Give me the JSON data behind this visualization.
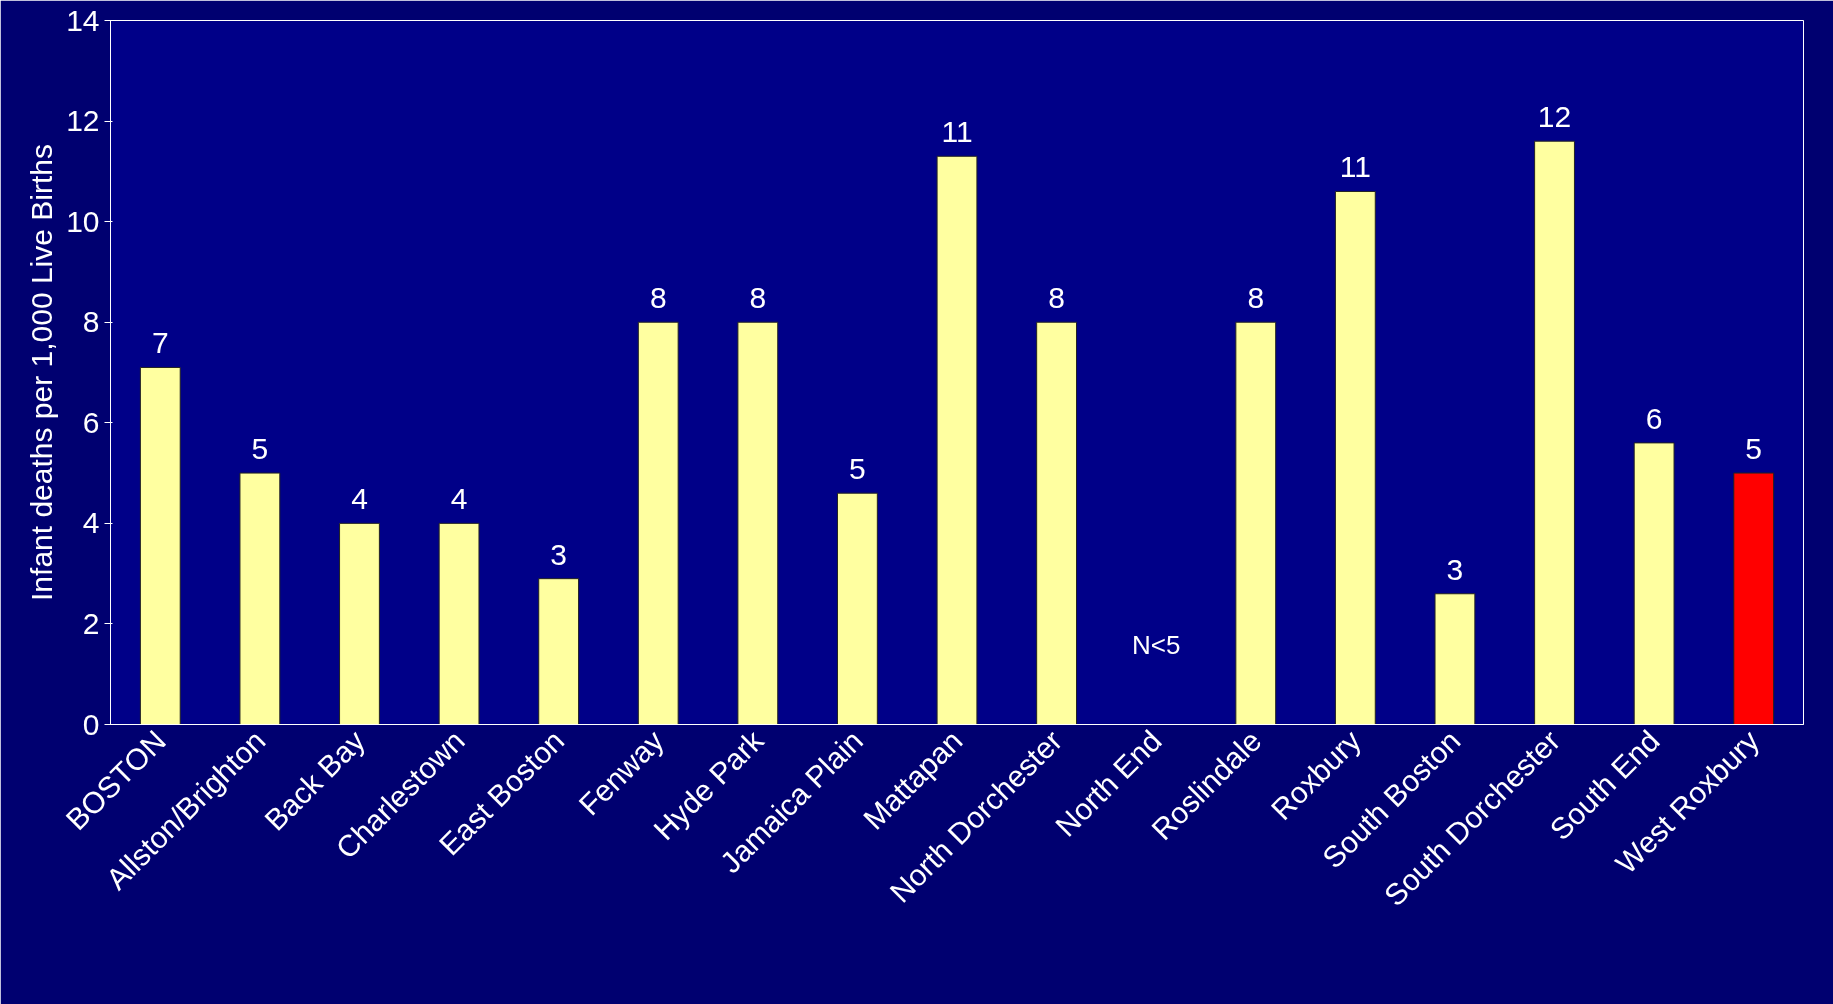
{
  "chart_data": {
    "type": "bar",
    "ylabel": "Infant deaths per 1,000 Live Births",
    "categories": [
      "BOSTON",
      "Allston/Brighton",
      "Back Bay",
      "Charlestown",
      "East Boston",
      "Fenway",
      "Hyde Park",
      "Jamaica Plain",
      "Mattapan",
      "North Dorchester",
      "North End",
      "Roslindale",
      "Roxbury",
      "South Boston",
      "South Dorchester",
      "South End",
      "West Roxbury"
    ],
    "values": [
      7.1,
      5.0,
      4.0,
      4.0,
      2.9,
      8.0,
      8.0,
      4.6,
      11.3,
      8.0,
      null,
      8.0,
      10.6,
      2.6,
      11.6,
      5.6,
      5.0
    ],
    "colors": [
      "#ffffa0",
      "#ffffa0",
      "#ffffa0",
      "#ffffa0",
      "#ffffa0",
      "#ffffa0",
      "#ffffa0",
      "#ffffa0",
      "#ffffa0",
      "#ffffa0",
      "#ffffa0",
      "#ffffa0",
      "#ffffa0",
      "#ffffa0",
      "#ffffa0",
      "#ffffa0",
      "#ff0000"
    ],
    "value_labels": [
      "7",
      "5",
      "4",
      "4",
      "3",
      "8",
      "8",
      "5",
      "11",
      "8",
      null,
      "8",
      "11",
      "3",
      "12",
      "6",
      "5"
    ],
    "annotations": [
      "N<5"
    ],
    "ylim": [
      0,
      14
    ],
    "yticks": [
      0,
      2,
      4,
      6,
      8,
      10,
      12,
      14
    ],
    "grid": false
  }
}
